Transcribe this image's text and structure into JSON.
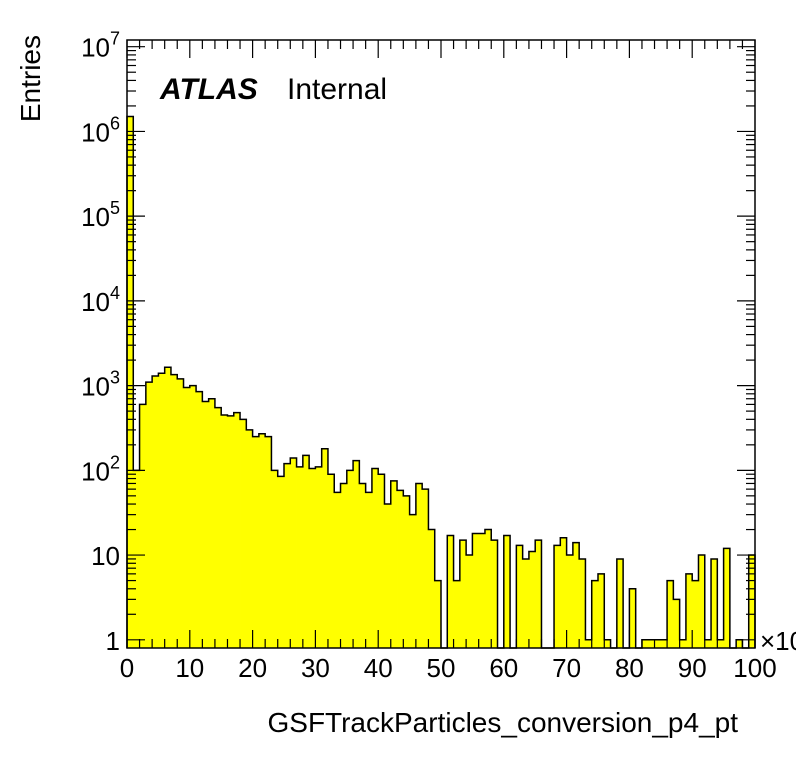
{
  "chart_data": {
    "type": "bar",
    "subtype": "histogram",
    "xlabel": "GSFTrackParticles_conversion_p4_pt",
    "ylabel": "Entries",
    "x_multiplier_label": "×10",
    "label": {
      "atlas": "ATLAS",
      "status": "Internal"
    },
    "xlim": [
      0,
      100
    ],
    "ylim": [
      0.8,
      12000000
    ],
    "yscale": "log",
    "x_ticks": [
      "0",
      "10",
      "20",
      "30",
      "40",
      "50",
      "60",
      "70",
      "80",
      "90",
      "100"
    ],
    "y_ticks": [
      {
        "value": 1,
        "label": "1"
      },
      {
        "value": 10,
        "label": "10"
      },
      {
        "value": 100,
        "label": "10",
        "exp": "2"
      },
      {
        "value": 1000,
        "label": "10",
        "exp": "3"
      },
      {
        "value": 10000,
        "label": "10",
        "exp": "4"
      },
      {
        "value": 100000,
        "label": "10",
        "exp": "5"
      },
      {
        "value": 1000000,
        "label": "10",
        "exp": "6"
      },
      {
        "value": 10000000,
        "label": "10",
        "exp": "7"
      }
    ],
    "bin_width": 1,
    "fill_color": "#ffff00",
    "line_color": "#000000",
    "grid": false,
    "values": [
      1500000,
      100,
      600,
      1100,
      1300,
      1400,
      1650,
      1350,
      1200,
      950,
      1000,
      850,
      650,
      700,
      550,
      450,
      440,
      480,
      400,
      300,
      250,
      270,
      250,
      100,
      85,
      120,
      140,
      110,
      150,
      105,
      110,
      180,
      90,
      55,
      70,
      100,
      130,
      70,
      55,
      105,
      90,
      40,
      75,
      58,
      50,
      30,
      70,
      60,
      20,
      5,
      0,
      17,
      5,
      15,
      10,
      18,
      18,
      20,
      15,
      0,
      17,
      0,
      13,
      9,
      11,
      15,
      0,
      0,
      13,
      16,
      10,
      14,
      9,
      1,
      5,
      6,
      1,
      0,
      9,
      0,
      4,
      0,
      1,
      1,
      1,
      1,
      5,
      3,
      1,
      6,
      5,
      10,
      1,
      9,
      1,
      12,
      0,
      1,
      0,
      10
    ]
  }
}
